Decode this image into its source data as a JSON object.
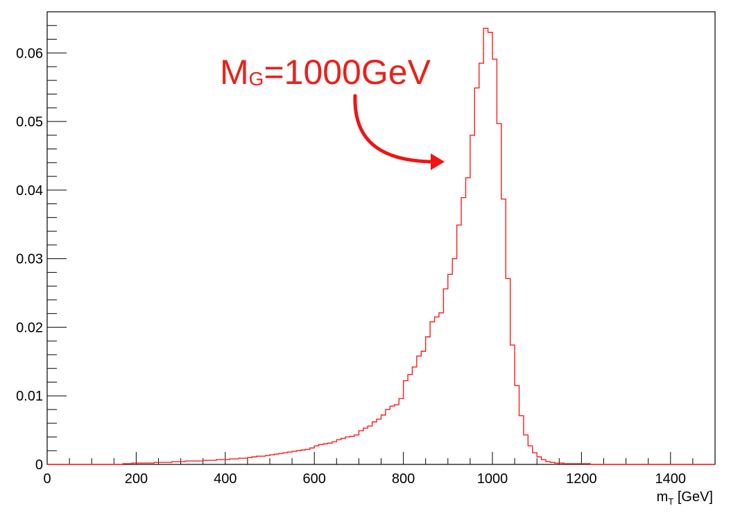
{
  "chart_data": {
    "type": "histogram",
    "title": "",
    "xlabel": {
      "main": "m",
      "sub": "T",
      "unit": " [GeV]"
    },
    "ylabel": "",
    "xlim": [
      0,
      1500
    ],
    "ylim": [
      0,
      0.066
    ],
    "bin_width": 10,
    "grid": false,
    "legend": "none",
    "colors": {
      "line": "#ff1a1a",
      "annotation": "#e8221b",
      "axis": "#000000"
    },
    "x_ticks": [
      0,
      200,
      400,
      600,
      800,
      1000,
      1200,
      1400
    ],
    "x_tick_labels": [
      "0",
      "200",
      "400",
      "600",
      "800",
      "1000",
      "1200",
      "1400"
    ],
    "y_ticks": [
      0,
      0.01,
      0.02,
      0.03,
      0.04,
      0.05,
      0.06
    ],
    "y_tick_labels": [
      "0",
      "0.01",
      "0.02",
      "0.03",
      "0.04",
      "0.05",
      "0.06"
    ],
    "series": [
      {
        "bin_low_edges": [
          170,
          180,
          190,
          200,
          210,
          220,
          230,
          240,
          250,
          260,
          270,
          280,
          290,
          300,
          310,
          320,
          330,
          340,
          350,
          360,
          370,
          380,
          390,
          400,
          410,
          420,
          430,
          440,
          450,
          460,
          470,
          480,
          490,
          500,
          510,
          520,
          530,
          540,
          550,
          560,
          570,
          580,
          590,
          600,
          610,
          620,
          630,
          640,
          650,
          660,
          670,
          680,
          690,
          700,
          710,
          720,
          730,
          740,
          750,
          760,
          770,
          780,
          790,
          800,
          810,
          820,
          830,
          840,
          850,
          860,
          870,
          880,
          890,
          900,
          910,
          920,
          930,
          940,
          950,
          960,
          970,
          980,
          990,
          1000,
          1010,
          1020,
          1030,
          1040,
          1050,
          1060,
          1070,
          1080,
          1090,
          1100,
          1110,
          1120,
          1130,
          1140,
          1150,
          1160,
          1170,
          1180,
          1190,
          1200,
          1210
        ],
        "values": [
          0.0001,
          0.0001,
          0.0002,
          0.0002,
          0.0002,
          0.0002,
          0.0002,
          0.0003,
          0.0003,
          0.0003,
          0.0003,
          0.0004,
          0.0004,
          0.0004,
          0.0005,
          0.0005,
          0.0005,
          0.0005,
          0.0006,
          0.0006,
          0.0006,
          0.0007,
          0.0007,
          0.0007,
          0.0008,
          0.0008,
          0.0009,
          0.0009,
          0.001,
          0.0011,
          0.0012,
          0.0012,
          0.0013,
          0.0014,
          0.0015,
          0.0016,
          0.0017,
          0.0018,
          0.0019,
          0.002,
          0.0021,
          0.0022,
          0.0024,
          0.0027,
          0.0029,
          0.003,
          0.0031,
          0.0033,
          0.0036,
          0.0038,
          0.004,
          0.0041,
          0.0043,
          0.0049,
          0.0053,
          0.0056,
          0.0062,
          0.0066,
          0.0072,
          0.008,
          0.0085,
          0.0087,
          0.0096,
          0.0122,
          0.0131,
          0.0142,
          0.0158,
          0.0165,
          0.0186,
          0.0208,
          0.0215,
          0.0221,
          0.0256,
          0.0277,
          0.03,
          0.0349,
          0.0389,
          0.0418,
          0.048,
          0.0549,
          0.0585,
          0.0636,
          0.063,
          0.0591,
          0.0497,
          0.0387,
          0.0271,
          0.0174,
          0.0115,
          0.0071,
          0.0043,
          0.0027,
          0.0017,
          0.0011,
          0.0007,
          0.0004,
          0.0003,
          0.0002,
          0.0002,
          0.0001,
          0.0001,
          0.0001,
          0.0001,
          0.0001,
          0.0001
        ]
      }
    ],
    "annotation": {
      "main": "M",
      "sub": "G",
      "rest": "=1000GeV"
    }
  }
}
